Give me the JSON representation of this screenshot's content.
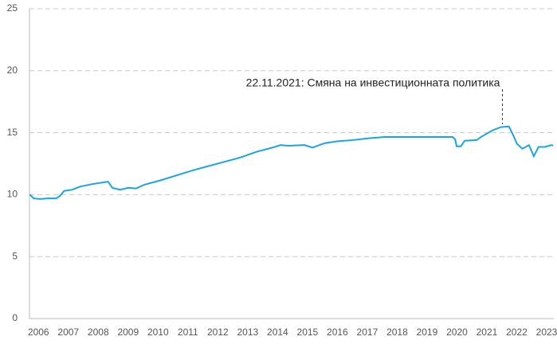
{
  "chart_data": {
    "type": "line",
    "annotation": {
      "text": "22.11.2021: Смяна на инвестиционната политика",
      "x": 2021.52
    },
    "x": [
      2005.71,
      2005.84,
      2006.05,
      2006.32,
      2006.59,
      2006.72,
      2006.86,
      2007.13,
      2007.39,
      2007.8,
      2008.2,
      2008.33,
      2008.47,
      2008.73,
      2009.0,
      2009.27,
      2009.54,
      2010.08,
      2010.61,
      2011.15,
      2011.68,
      2012.22,
      2012.76,
      2013.29,
      2013.83,
      2014.1,
      2014.36,
      2014.9,
      2015.17,
      2015.57,
      2015.97,
      2016.51,
      2017.05,
      2017.58,
      2018.12,
      2019.19,
      2019.86,
      2019.94,
      2019.99,
      2020.13,
      2020.26,
      2020.66,
      2020.8,
      2021.2,
      2021.47,
      2021.74,
      2021.88,
      2022.01,
      2022.19,
      2022.41,
      2022.57,
      2022.73,
      2022.94,
      2023.16,
      2023.22
    ],
    "series": [
      {
        "color": "#1aa5e0",
        "values": [
          10.0,
          9.7,
          9.65,
          9.7,
          9.7,
          9.9,
          10.3,
          10.4,
          10.65,
          10.85,
          11.0,
          11.05,
          10.55,
          10.4,
          10.55,
          10.5,
          10.8,
          11.15,
          11.55,
          11.95,
          12.3,
          12.65,
          13.0,
          13.45,
          13.8,
          14.0,
          13.95,
          14.0,
          13.8,
          14.15,
          14.3,
          14.4,
          14.55,
          14.65,
          14.65,
          14.65,
          14.65,
          14.45,
          13.9,
          13.9,
          14.35,
          14.4,
          14.65,
          15.2,
          15.45,
          15.5,
          14.8,
          14.1,
          13.7,
          14.0,
          13.1,
          13.85,
          13.85,
          14.0,
          13.95
        ]
      }
    ],
    "xlim": [
      2005.7,
      2023.24
    ],
    "xticks": [
      2006,
      2007,
      2008,
      2009,
      2010,
      2011,
      2012,
      2013,
      2014,
      2015,
      2016,
      2017,
      2018,
      2019,
      2020,
      2021,
      2022,
      2023
    ],
    "ylim": [
      0,
      25
    ],
    "yticks": [
      0,
      5,
      10,
      15,
      20,
      25
    ],
    "grid": true
  }
}
